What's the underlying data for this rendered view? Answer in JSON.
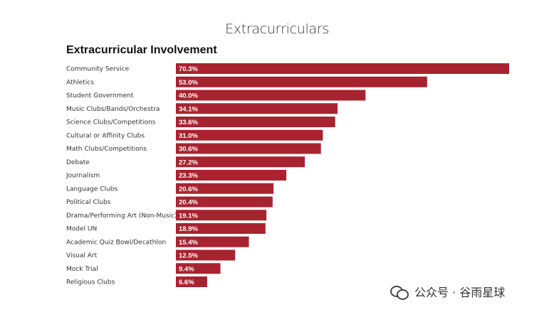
{
  "page_title": "Extracurriculars",
  "watermark": {
    "text": "公众号 · 谷雨星球",
    "icon": "wechat-icon"
  },
  "colors": {
    "bar": "#a8232f",
    "value_text": "#ffffff"
  },
  "chart_data": {
    "type": "bar",
    "orientation": "horizontal",
    "title": "Extracurricular Involvement",
    "xlabel": "",
    "ylabel": "",
    "xlim": [
      0,
      70.3
    ],
    "grid": false,
    "legend": "none",
    "categories": [
      "Community Service",
      "Athletics",
      "Student Government",
      "Music Clubs/Bands/Orchestra",
      "Science Clubs/Competitions",
      "Cultural or Affinity Clubs",
      "Math Clubs/Competitions",
      "Debate",
      "Journalism",
      "Language Clubs",
      "Political Clubs",
      "Drama/Performing Art (Non-Music)",
      "Model UN",
      "Academic Quiz Bowl/Decathlon",
      "Visual Art",
      "Mock Trial",
      "Religious Clubs"
    ],
    "values": [
      70.3,
      53.0,
      40.0,
      34.1,
      33.6,
      31.0,
      30.6,
      27.2,
      23.3,
      20.6,
      20.4,
      19.1,
      18.9,
      15.4,
      12.5,
      9.4,
      6.6
    ],
    "value_labels": [
      "70.3%",
      "53.0%",
      "40.0%",
      "34.1%",
      "33.6%",
      "31.0%",
      "30.6%",
      "27.2%",
      "23.3%",
      "20.6%",
      "20.4%",
      "19.1%",
      "18.9%",
      "15.4%",
      "12.5%",
      "9.4%",
      "6.6%"
    ]
  }
}
